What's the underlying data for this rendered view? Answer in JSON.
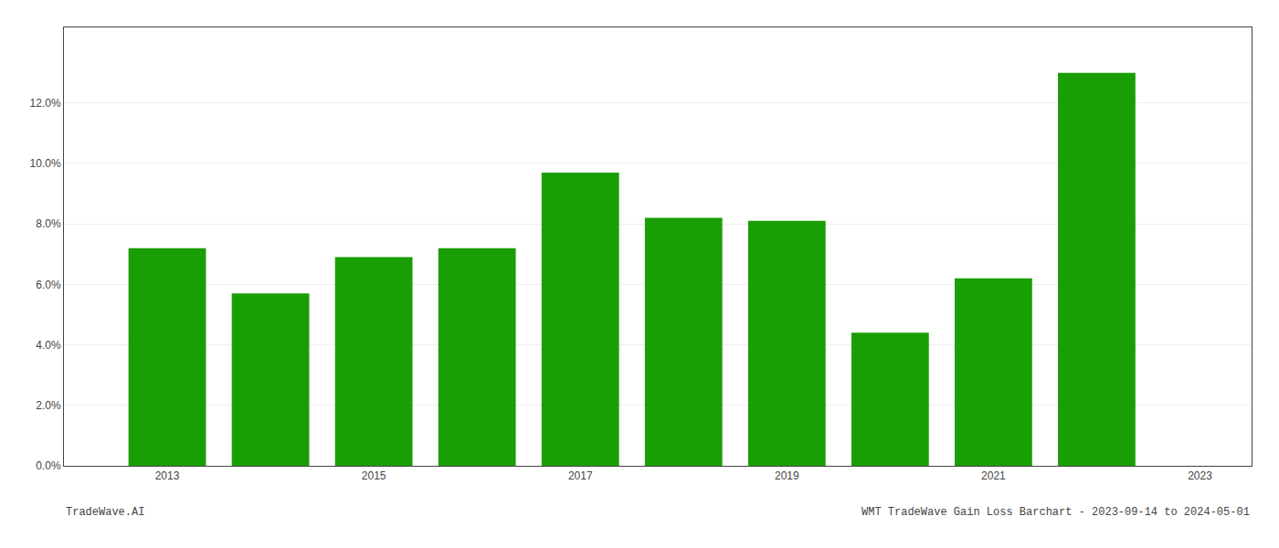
{
  "chart_data": {
    "type": "bar",
    "x": [
      2013,
      2014,
      2015,
      2016,
      2017,
      2018,
      2019,
      2020,
      2021,
      2022
    ],
    "values": [
      0.072,
      0.057,
      0.069,
      0.072,
      0.097,
      0.082,
      0.081,
      0.044,
      0.062,
      0.13
    ],
    "color": "#1a9e06",
    "xlim": [
      2012.0,
      2023.5
    ],
    "xticks": [
      2013,
      2015,
      2017,
      2019,
      2021,
      2023
    ],
    "ylim": [
      0,
      0.145
    ],
    "yticks": [
      {
        "value": 0.0,
        "label": "0.0%"
      },
      {
        "value": 0.02,
        "label": "2.0%"
      },
      {
        "value": 0.04,
        "label": "4.0%"
      },
      {
        "value": 0.06,
        "label": "6.0%"
      },
      {
        "value": 0.08,
        "label": "8.0%"
      },
      {
        "value": 0.1,
        "label": "10.0%"
      },
      {
        "value": 0.12,
        "label": "12.0%"
      }
    ],
    "grid": "y",
    "annotations": [
      "TradeWave.AI",
      "WMT TradeWave Gain Loss Barchart - 2023-09-14 to 2024-05-01"
    ]
  }
}
